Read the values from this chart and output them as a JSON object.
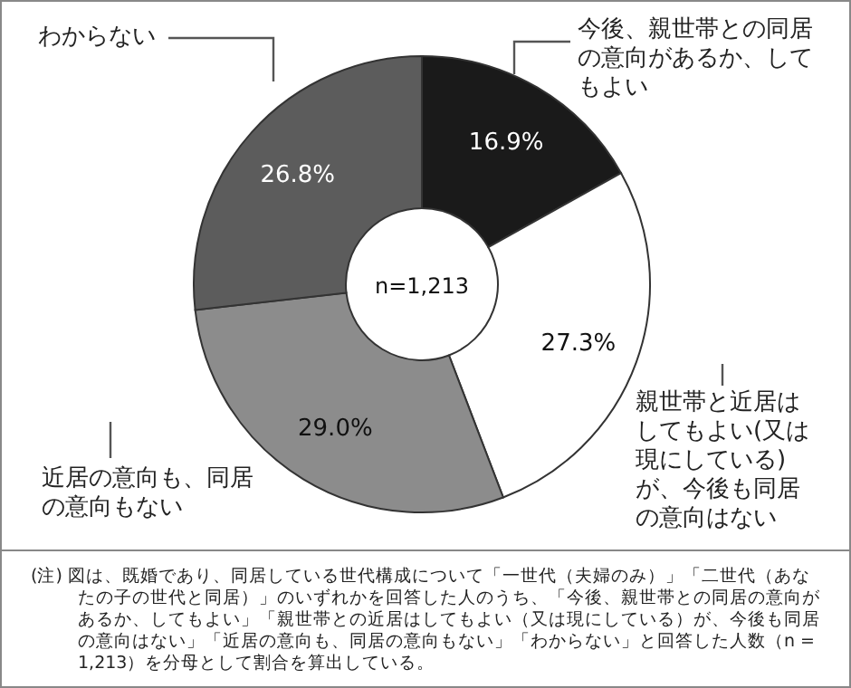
{
  "chart_data": {
    "type": "donut",
    "categories": [
      "今後、親世帯との同居の意向があるか、してもよい",
      "親世帯と近居はしてもよい(又は現にしている)が、今後も同居の意向はない",
      "近居の意向も、同居の意向もない",
      "わからない"
    ],
    "values": [
      16.9,
      27.3,
      29.0,
      26.8
    ],
    "colors": [
      "#1a1a1a",
      "#ffffff",
      "#8c8c8c",
      "#5c5c5c"
    ],
    "value_labels": [
      "16.9%",
      "27.3%",
      "29.0%",
      "26.8%"
    ],
    "annotations": [
      "n=1,213",
      "(注) 図は、既婚であり、同居している世代構成について「一世代（夫婦のみ）」「二世代（あなたの子の世代と同居）」のいずれかを回答した人のうち、「今後、親世帯との同居の意向があるか、してもよい」「親世帯との近居はしてもよい（又は現にしている）が、今後も同居の意向はない」「近居の意向も、同居の意向もない」「わからない」と回答した人数（n = 1,213）を分母として割合を算出している。"
    ]
  }
}
